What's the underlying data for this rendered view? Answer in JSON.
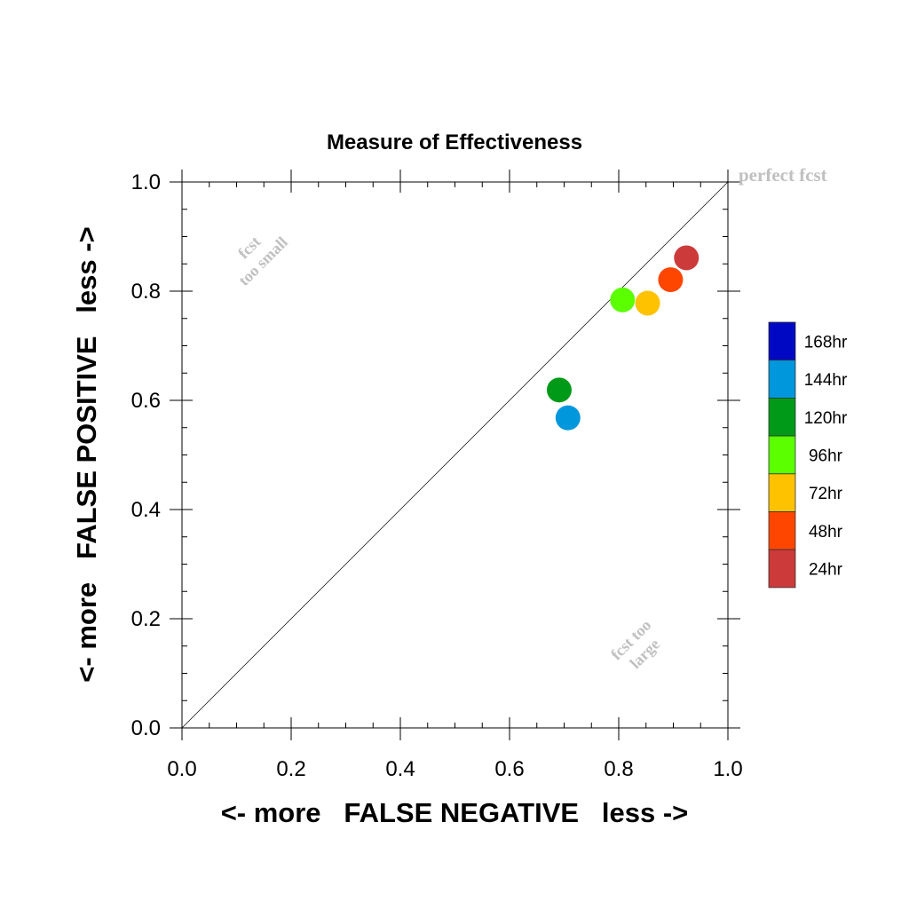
{
  "chart_data": {
    "type": "scatter",
    "title": "Measure of Effectiveness",
    "xlabel": "<- more   FALSE NEGATIVE   less ->",
    "ylabel": "<- more   FALSE POSITIVE   less ->",
    "xlim": [
      0.0,
      1.0
    ],
    "ylim": [
      0.0,
      1.0
    ],
    "x_ticks": [
      "0.0",
      "0.2",
      "0.4",
      "0.6",
      "0.8",
      "1.0"
    ],
    "y_ticks": [
      "0.0",
      "0.2",
      "0.4",
      "0.6",
      "0.8",
      "1.0"
    ],
    "grid": false,
    "legend_position": "right",
    "reference_line": {
      "from": [
        0,
        0
      ],
      "to": [
        1,
        1
      ]
    },
    "annotations": {
      "perfect": "perfect fcst",
      "small_line1": "fcst",
      "small_line2": "too small",
      "large_line1": "fcst too",
      "large_line2": "large"
    },
    "series": [
      {
        "name": "168hr",
        "color": "#0008c4",
        "points": []
      },
      {
        "name": "144hr",
        "color": "#0097dd",
        "points": [
          [
            0.707,
            0.568
          ]
        ]
      },
      {
        "name": "120hr",
        "color": "#009a18",
        "points": [
          [
            0.691,
            0.619
          ]
        ]
      },
      {
        "name": "96hr",
        "color": "#5bff00",
        "points": [
          [
            0.807,
            0.784
          ]
        ]
      },
      {
        "name": "72hr",
        "color": "#ffc200",
        "points": [
          [
            0.853,
            0.778
          ]
        ]
      },
      {
        "name": "48hr",
        "color": "#ff4600",
        "points": [
          [
            0.895,
            0.821
          ]
        ]
      },
      {
        "name": "24hr",
        "color": "#cc3a3a",
        "points": [
          [
            0.924,
            0.861
          ]
        ]
      }
    ]
  }
}
